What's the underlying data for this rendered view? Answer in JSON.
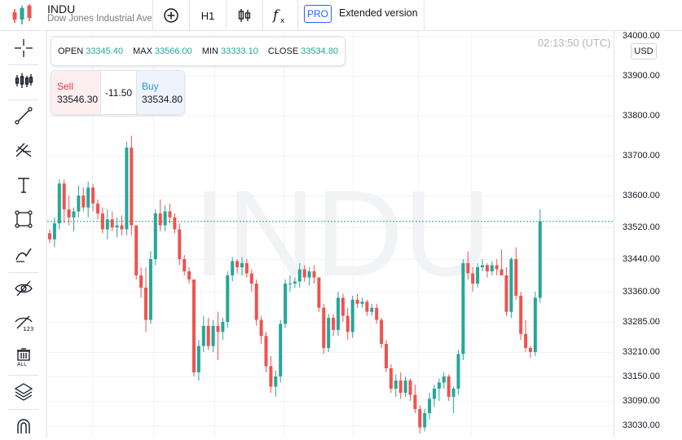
{
  "header": {
    "symbol": "INDU",
    "full_name": "Dow Jones Industrial Average",
    "timeframe": "H1",
    "pro_badge": "PRO",
    "extended_label": "Extended version",
    "icons": [
      "add-circle-icon",
      "candles-icon",
      "function-icon"
    ]
  },
  "toolbar": {
    "tools": [
      "crosshair-icon",
      "indicators-icon",
      "trendline-icon",
      "fib-icon",
      "text-icon",
      "rectangle-icon",
      "brush-icon",
      "hide-drawings-icon",
      "hide-labels-icon",
      "delete-all-icon",
      "layers-icon",
      "magnet-icon"
    ]
  },
  "ohlc": {
    "open_label": "OPEN",
    "open": "33345.40",
    "max_label": "MAX",
    "max": "33566.00",
    "min_label": "MIN",
    "min": "33333.10",
    "close_label": "CLOSE",
    "close": "33534.80"
  },
  "trade": {
    "sell_label": "Sell",
    "sell_price": "33546.30",
    "spread": "-11.50",
    "buy_label": "Buy",
    "buy_price": "33534.80"
  },
  "axis": {
    "currency": "USD",
    "ticks": [
      "34000.00",
      "33900.00",
      "33800.00",
      "33700.00",
      "33600.00",
      "33520.00",
      "33440.00",
      "33360.00",
      "33285.00",
      "33210.00",
      "33150.00",
      "33090.00",
      "33030.00"
    ]
  },
  "time_display": "02:13:50 (UTC)",
  "watermark": "INDU",
  "colors": {
    "up": "#26a69a",
    "down": "#ef5350",
    "accent": "#2962ff"
  },
  "chart_data": {
    "type": "candlestick",
    "ylim": [
      33010,
      34000
    ],
    "last_price": 33534.8,
    "candles": [
      [
        33505,
        33515,
        33480,
        33490
      ],
      [
        33490,
        33545,
        33470,
        33530
      ],
      [
        33530,
        33640,
        33515,
        33630
      ],
      [
        33630,
        33640,
        33530,
        33565
      ],
      [
        33565,
        33600,
        33525,
        33545
      ],
      [
        33545,
        33570,
        33510,
        33560
      ],
      [
        33560,
        33625,
        33545,
        33600
      ],
      [
        33600,
        33620,
        33560,
        33570
      ],
      [
        33570,
        33635,
        33545,
        33620
      ],
      [
        33620,
        33630,
        33560,
        33580
      ],
      [
        33580,
        33590,
        33540,
        33555
      ],
      [
        33555,
        33570,
        33505,
        33515
      ],
      [
        33515,
        33565,
        33490,
        33540
      ],
      [
        33540,
        33560,
        33510,
        33520
      ],
      [
        33520,
        33545,
        33495,
        33525
      ],
      [
        33525,
        33550,
        33500,
        33515
      ],
      [
        33515,
        33735,
        33500,
        33720
      ],
      [
        33720,
        33750,
        33500,
        33525
      ],
      [
        33525,
        33525,
        33390,
        33400
      ],
      [
        33400,
        33420,
        33345,
        33370
      ],
      [
        33370,
        33420,
        33260,
        33290
      ],
      [
        33290,
        33460,
        33280,
        33440
      ],
      [
        33440,
        33565,
        33425,
        33555
      ],
      [
        33555,
        33590,
        33510,
        33525
      ],
      [
        33525,
        33575,
        33510,
        33560
      ],
      [
        33560,
        33580,
        33530,
        33545
      ],
      [
        33545,
        33555,
        33505,
        33515
      ],
      [
        33515,
        33530,
        33425,
        33440
      ],
      [
        33440,
        33450,
        33400,
        33410
      ],
      [
        33410,
        33420,
        33380,
        33390
      ],
      [
        33390,
        33390,
        33150,
        33160
      ],
      [
        33160,
        33240,
        33140,
        33225
      ],
      [
        33225,
        33300,
        33210,
        33275
      ],
      [
        33275,
        33295,
        33215,
        33225
      ],
      [
        33225,
        33290,
        33210,
        33275
      ],
      [
        33275,
        33310,
        33190,
        33260
      ],
      [
        33260,
        33295,
        33240,
        33285
      ],
      [
        33285,
        33410,
        33270,
        33400
      ],
      [
        33400,
        33445,
        33385,
        33435
      ],
      [
        33435,
        33440,
        33405,
        33420
      ],
      [
        33420,
        33445,
        33400,
        33430
      ],
      [
        33430,
        33440,
        33395,
        33405
      ],
      [
        33405,
        33415,
        33360,
        33380
      ],
      [
        33380,
        33390,
        33275,
        33290
      ],
      [
        33290,
        33300,
        33230,
        33250
      ],
      [
        33250,
        33260,
        33160,
        33175
      ],
      [
        33175,
        33200,
        33110,
        33125
      ],
      [
        33125,
        33165,
        33100,
        33150
      ],
      [
        33150,
        33290,
        33135,
        33280
      ],
      [
        33280,
        33390,
        33270,
        33380
      ],
      [
        33380,
        33400,
        33360,
        33380
      ],
      [
        33380,
        33395,
        33370,
        33385
      ],
      [
        33385,
        33430,
        33370,
        33415
      ],
      [
        33415,
        33425,
        33385,
        33395
      ],
      [
        33395,
        33420,
        33375,
        33410
      ],
      [
        33410,
        33425,
        33380,
        33395
      ],
      [
        33395,
        33395,
        33310,
        33320
      ],
      [
        33320,
        33330,
        33205,
        33220
      ],
      [
        33220,
        33305,
        33210,
        33295
      ],
      [
        33295,
        33305,
        33250,
        33265
      ],
      [
        33265,
        33360,
        33250,
        33345
      ],
      [
        33345,
        33355,
        33285,
        33300
      ],
      [
        33300,
        33320,
        33240,
        33260
      ],
      [
        33260,
        33350,
        33245,
        33340
      ],
      [
        33340,
        33355,
        33320,
        33330
      ],
      [
        33330,
        33345,
        33320,
        33335
      ],
      [
        33335,
        33340,
        33300,
        33310
      ],
      [
        33310,
        33330,
        33300,
        33320
      ],
      [
        33320,
        33330,
        33280,
        33290
      ],
      [
        33290,
        33295,
        33220,
        33230
      ],
      [
        33230,
        33240,
        33160,
        33170
      ],
      [
        33170,
        33180,
        33110,
        33120
      ],
      [
        33120,
        33155,
        33100,
        33140
      ],
      [
        33140,
        33160,
        33095,
        33110
      ],
      [
        33110,
        33150,
        33100,
        33140
      ],
      [
        33140,
        33145,
        33090,
        33105
      ],
      [
        33105,
        33130,
        33060,
        33070
      ],
      [
        33070,
        33080,
        33010,
        33025
      ],
      [
        33025,
        33070,
        33015,
        33060
      ],
      [
        33060,
        33110,
        33045,
        33095
      ],
      [
        33095,
        33130,
        33075,
        33120
      ],
      [
        33120,
        33145,
        33090,
        33135
      ],
      [
        33135,
        33160,
        33120,
        33150
      ],
      [
        33150,
        33155,
        33090,
        33100
      ],
      [
        33100,
        33125,
        33060,
        33120
      ],
      [
        33120,
        33215,
        33105,
        33205
      ],
      [
        33205,
        33440,
        33190,
        33430
      ],
      [
        33430,
        33460,
        33390,
        33405
      ],
      [
        33405,
        33420,
        33360,
        33380
      ],
      [
        33380,
        33430,
        33370,
        33420
      ],
      [
        33420,
        33440,
        33410,
        33425
      ],
      [
        33425,
        33430,
        33395,
        33410
      ],
      [
        33410,
        33435,
        33400,
        33425
      ],
      [
        33425,
        33440,
        33400,
        33415
      ],
      [
        33415,
        33465,
        33400,
        33400
      ],
      [
        33400,
        33420,
        33300,
        33310
      ],
      [
        33310,
        33445,
        33295,
        33440
      ],
      [
        33440,
        33470,
        33340,
        33350
      ],
      [
        33350,
        33360,
        33240,
        33255
      ],
      [
        33255,
        33290,
        33210,
        33220
      ],
      [
        33220,
        33225,
        33195,
        33210
      ],
      [
        33210,
        33360,
        33200,
        33345
      ],
      [
        33345,
        33566,
        33333,
        33535
      ]
    ]
  }
}
